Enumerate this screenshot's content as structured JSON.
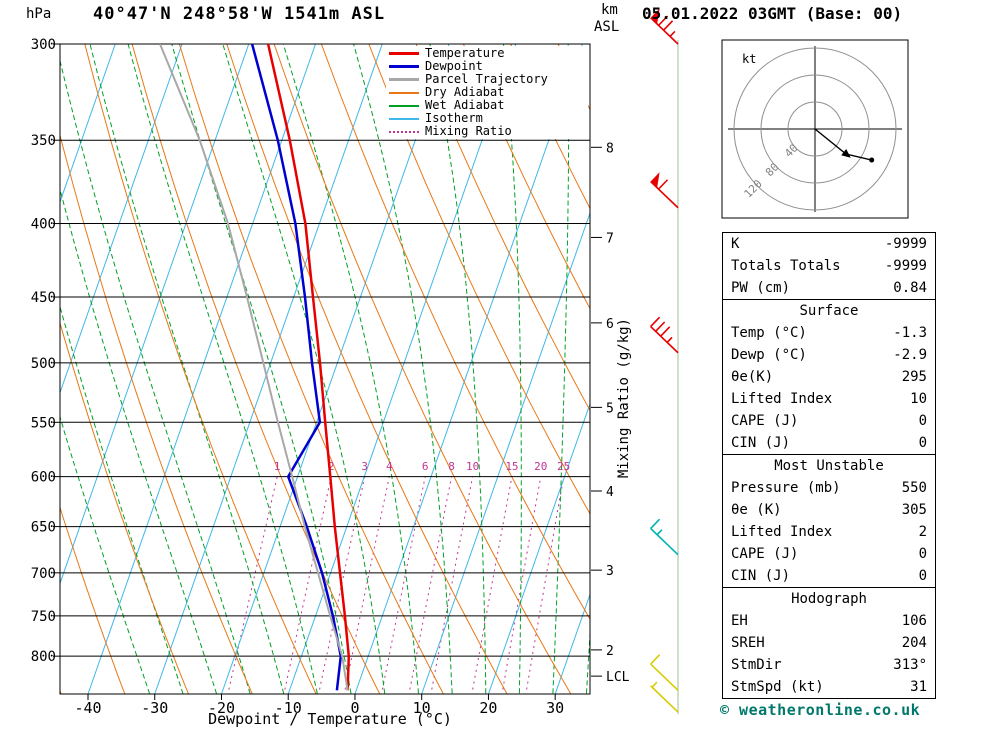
{
  "header": {
    "station": "40°47'N 248°58'W 1541m ASL",
    "datetime": "05.01.2022 03GMT (Base: 00)"
  },
  "axes": {
    "pressure_unit": "hPa",
    "pressure_ticks": [
      300,
      350,
      400,
      450,
      500,
      550,
      600,
      650,
      700,
      750,
      800
    ],
    "km_line1": "km",
    "km_line2": "ASL",
    "km_ticks": [
      {
        "km": "8",
        "hpa": 354
      },
      {
        "km": "7",
        "hpa": 409
      },
      {
        "km": "6",
        "hpa": 469
      },
      {
        "km": "5",
        "hpa": 537
      },
      {
        "km": "4",
        "hpa": 614
      },
      {
        "km": "3",
        "hpa": 697
      },
      {
        "km": "2",
        "hpa": 792
      }
    ],
    "lcl_label": "LCL",
    "lcl_hpa": 826,
    "temp_ticks": [
      -40,
      -30,
      -20,
      -10,
      0,
      10,
      20,
      30
    ],
    "xlabel": "Dewpoint / Temperature (°C)",
    "right_axis_label": "Mixing Ratio (g/kg)"
  },
  "legend": {
    "items": [
      {
        "label": "Temperature",
        "color": "#e80000",
        "style": "solid",
        "weight": 2
      },
      {
        "label": "Dewpoint",
        "color": "#0000d0",
        "style": "solid",
        "weight": 2
      },
      {
        "label": "Parcel Trajectory",
        "color": "#a8a8a8",
        "style": "solid",
        "weight": 2
      },
      {
        "label": "Dry Adiabat",
        "color": "#e87818",
        "style": "solid",
        "weight": 1
      },
      {
        "label": "Wet Adiabat",
        "color": "#00a028",
        "style": "solid",
        "weight": 1
      },
      {
        "label": "Isotherm",
        "color": "#40b8e8",
        "style": "solid",
        "weight": 1
      },
      {
        "label": "Mixing Ratio",
        "color": "#c23692",
        "style": "dotted",
        "weight": 1
      }
    ]
  },
  "chart_data": {
    "type": "line",
    "variant": "skew-t-log-p",
    "title": "40°47'N 248°58'W 1541m ASL",
    "xlabel": "Dewpoint / Temperature (°C)",
    "x_range_c": [
      -44,
      35
    ],
    "pressure_range_hpa": [
      300,
      850
    ],
    "pressure_levels_hpa": [
      845,
      800,
      750,
      700,
      650,
      600,
      550,
      500,
      450,
      400,
      350,
      300
    ],
    "series": [
      {
        "name": "Temperature",
        "color": "#e80000",
        "values_c": [
          -1.3,
          -2.9,
          -5.6,
          -8.6,
          -11.8,
          -15.1,
          -18.7,
          -22.6,
          -27.1,
          -32.1,
          -38.8,
          -47.1
        ]
      },
      {
        "name": "Dewpoint",
        "color": "#0000d0",
        "values_c": [
          -2.9,
          -4.1,
          -7.4,
          -11.3,
          -16.0,
          -21.4,
          -19.5,
          -23.8,
          -28.3,
          -33.6,
          -40.6,
          -49.5
        ]
      },
      {
        "name": "Parcel Trajectory",
        "color": "#a8a8a8",
        "values_c": [
          -1.3,
          -3.9,
          -7.8,
          -11.9,
          -16.3,
          -20.8,
          -25.8,
          -31.1,
          -37.0,
          -43.7,
          -52.3,
          -63.3
        ]
      }
    ],
    "isotherms_c": {
      "min": -80,
      "max": 40,
      "step": 10
    },
    "dry_adiabats_theta_k": {
      "min": 240,
      "max": 400,
      "step": 10
    },
    "wet_adiabats_tw_c": {
      "min": -30,
      "max": 40,
      "step": 5
    },
    "mixing_ratio_g_kg": [
      1,
      2,
      3,
      4,
      6,
      8,
      10,
      15,
      20,
      25
    ],
    "wind_barbs": [
      {
        "hpa": 300,
        "speed_kt": 75,
        "color": "#e80000"
      },
      {
        "hpa": 390,
        "speed_kt": 60,
        "color": "#e80000"
      },
      {
        "hpa": 492,
        "speed_kt": 35,
        "color": "#e80000"
      },
      {
        "hpa": 680,
        "speed_kt": 15,
        "color": "#00b4b4"
      },
      {
        "hpa": 845,
        "speed_kt": 10,
        "color": "#d8cc00"
      },
      {
        "hpa": 875,
        "speed_kt": 5,
        "color": "#d8cc00"
      }
    ]
  },
  "hodograph": {
    "unit_label": "kt",
    "rings_kt": [
      40,
      80,
      120
    ],
    "ring_labels": [
      "40",
      "80",
      "120"
    ],
    "trace_kt": [
      [
        0,
        0
      ],
      [
        46,
        -37
      ],
      [
        84,
        -46
      ]
    ],
    "arrow_index": 1
  },
  "panel": {
    "sections": [
      {
        "header": null,
        "rows": [
          [
            "K",
            "-9999"
          ],
          [
            "Totals Totals",
            "-9999"
          ],
          [
            "PW (cm)",
            "0.84"
          ]
        ]
      },
      {
        "header": "Surface",
        "rows": [
          [
            "Temp (°C)",
            "-1.3"
          ],
          [
            "Dewp (°C)",
            "-2.9"
          ],
          [
            "θe(K)",
            "295"
          ],
          [
            "Lifted Index",
            "10"
          ],
          [
            "CAPE (J)",
            "0"
          ],
          [
            "CIN (J)",
            "0"
          ]
        ]
      },
      {
        "header": "Most Unstable",
        "rows": [
          [
            "Pressure (mb)",
            "550"
          ],
          [
            "θe (K)",
            "305"
          ],
          [
            "Lifted Index",
            "2"
          ],
          [
            "CAPE (J)",
            "0"
          ],
          [
            "CIN (J)",
            "0"
          ]
        ]
      },
      {
        "header": "Hodograph",
        "rows": [
          [
            "EH",
            "106"
          ],
          [
            "SREH",
            "204"
          ],
          [
            "StmDir",
            "313°"
          ],
          [
            "StmSpd (kt)",
            "31"
          ]
        ]
      }
    ]
  },
  "footer": {
    "copyright": "© weatheronline.co.uk"
  }
}
